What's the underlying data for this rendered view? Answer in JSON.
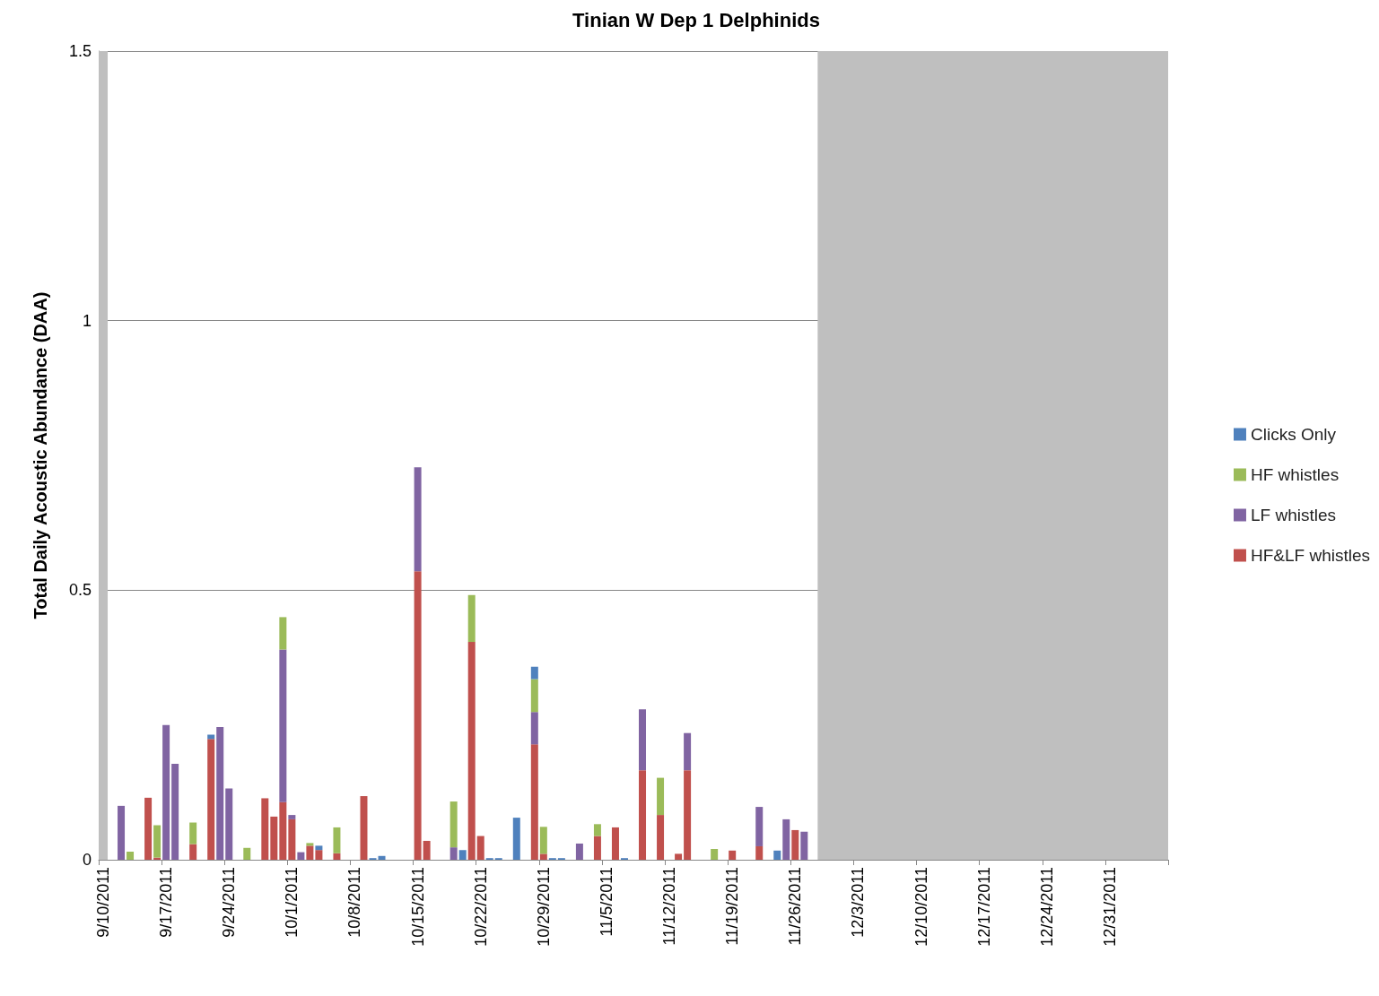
{
  "chart_data": {
    "type": "bar",
    "title": "Tinian W Dep 1 Delphinids",
    "ylabel": "Total Daily Acoustic Abundance (DAA)",
    "stacked": true,
    "x": [
      "2011-09-12",
      "2011-09-13",
      "2011-09-15",
      "2011-09-16",
      "2011-09-17",
      "2011-09-18",
      "2011-09-20",
      "2011-09-22",
      "2011-09-23",
      "2011-09-24",
      "2011-09-26",
      "2011-09-28",
      "2011-09-29",
      "2011-09-30",
      "2011-10-01",
      "2011-10-02",
      "2011-10-03",
      "2011-10-04",
      "2011-10-06",
      "2011-10-09",
      "2011-10-10",
      "2011-10-11",
      "2011-10-15",
      "2011-10-16",
      "2011-10-19",
      "2011-10-20",
      "2011-10-21",
      "2011-10-22",
      "2011-10-23",
      "2011-10-24",
      "2011-10-26",
      "2011-10-28",
      "2011-10-29",
      "2011-10-30",
      "2011-10-31",
      "2011-11-02",
      "2011-11-04",
      "2011-11-06",
      "2011-11-07",
      "2011-11-09",
      "2011-11-11",
      "2011-11-13",
      "2011-11-14",
      "2011-11-17",
      "2011-11-19",
      "2011-11-22",
      "2011-11-24",
      "2011-11-25",
      "2011-11-26",
      "2011-11-27"
    ],
    "series": [
      {
        "name": "HF&LF whistles",
        "color": "#c0504d",
        "values": [
          null,
          null,
          0.115,
          0.004,
          null,
          null,
          0.029,
          0.224,
          null,
          null,
          null,
          0.114,
          0.08,
          0.107,
          0.075,
          null,
          0.026,
          0.018,
          0.012,
          0.118,
          null,
          null,
          0.535,
          0.035,
          null,
          null,
          0.404,
          0.044,
          null,
          null,
          null,
          0.214,
          0.011,
          null,
          null,
          null,
          0.044,
          0.06,
          null,
          0.166,
          0.083,
          0.011,
          0.166,
          null,
          0.017,
          0.025,
          null,
          null,
          0.055,
          null
        ]
      },
      {
        "name": "LF whistles",
        "color": "#8064a2",
        "values": [
          0.1,
          null,
          null,
          null,
          0.25,
          0.178,
          null,
          null,
          0.246,
          0.132,
          null,
          null,
          null,
          0.283,
          0.008,
          0.014,
          null,
          null,
          null,
          null,
          null,
          null,
          0.193,
          null,
          0.023,
          null,
          null,
          null,
          null,
          null,
          null,
          0.06,
          null,
          null,
          null,
          0.03,
          null,
          null,
          null,
          0.113,
          null,
          null,
          0.069,
          null,
          null,
          0.073,
          null,
          0.075,
          null,
          0.052
        ]
      },
      {
        "name": "HF whistles",
        "color": "#9bbb59",
        "values": [
          null,
          0.015,
          null,
          0.06,
          null,
          null,
          0.04,
          null,
          null,
          null,
          0.022,
          null,
          null,
          0.06,
          null,
          null,
          0.005,
          null,
          0.048,
          null,
          null,
          null,
          null,
          null,
          0.085,
          null,
          0.087,
          null,
          null,
          null,
          null,
          0.061,
          0.05,
          null,
          null,
          null,
          0.022,
          null,
          null,
          null,
          0.069,
          null,
          null,
          0.02,
          null,
          null,
          null,
          null,
          null,
          null
        ]
      },
      {
        "name": "Clicks Only",
        "color": "#4f81bd",
        "values": [
          null,
          null,
          null,
          null,
          null,
          null,
          null,
          0.008,
          null,
          null,
          null,
          null,
          null,
          null,
          null,
          null,
          null,
          0.008,
          null,
          null,
          0.003,
          0.007,
          null,
          null,
          null,
          0.018,
          null,
          null,
          0.003,
          0.003,
          0.078,
          0.023,
          null,
          0.003,
          0.003,
          null,
          null,
          null,
          0.003,
          null,
          null,
          null,
          null,
          null,
          null,
          null,
          0.017,
          null,
          null,
          null
        ]
      }
    ],
    "xlim": [
      "2011-09-10",
      "2012-01-07"
    ],
    "xticks": [
      {
        "value": "2011-09-10",
        "label": "9/10/2011"
      },
      {
        "value": "2011-09-17",
        "label": "9/17/2011"
      },
      {
        "value": "2011-09-24",
        "label": "9/24/2011"
      },
      {
        "value": "2011-10-01",
        "label": "10/1/2011"
      },
      {
        "value": "2011-10-08",
        "label": "10/8/2011"
      },
      {
        "value": "2011-10-15",
        "label": "10/15/2011"
      },
      {
        "value": "2011-10-22",
        "label": "10/22/2011"
      },
      {
        "value": "2011-10-29",
        "label": "10/29/2011"
      },
      {
        "value": "2011-11-05",
        "label": "11/5/2011"
      },
      {
        "value": "2011-11-12",
        "label": "11/12/2011"
      },
      {
        "value": "2011-11-19",
        "label": "11/19/2011"
      },
      {
        "value": "2011-11-26",
        "label": "11/26/2011"
      },
      {
        "value": "2011-12-03",
        "label": "12/3/2011"
      },
      {
        "value": "2011-12-10",
        "label": "12/10/2011"
      },
      {
        "value": "2011-12-17",
        "label": "12/17/2011"
      },
      {
        "value": "2011-12-24",
        "label": "12/24/2011"
      },
      {
        "value": "2011-12-31",
        "label": "12/31/2011"
      }
    ],
    "ylim": [
      0,
      1.5
    ],
    "yticks": [
      0,
      0.5,
      1,
      1.5
    ],
    "grid": "y",
    "legend": "right",
    "bands": [
      {
        "axis": "x",
        "from": "2011-09-10",
        "to": "2011-09-11",
        "color": "#bfbfbf"
      },
      {
        "axis": "x",
        "from": "2011-11-29",
        "to": "2012-01-07",
        "color": "#bfbfbf"
      }
    ]
  }
}
